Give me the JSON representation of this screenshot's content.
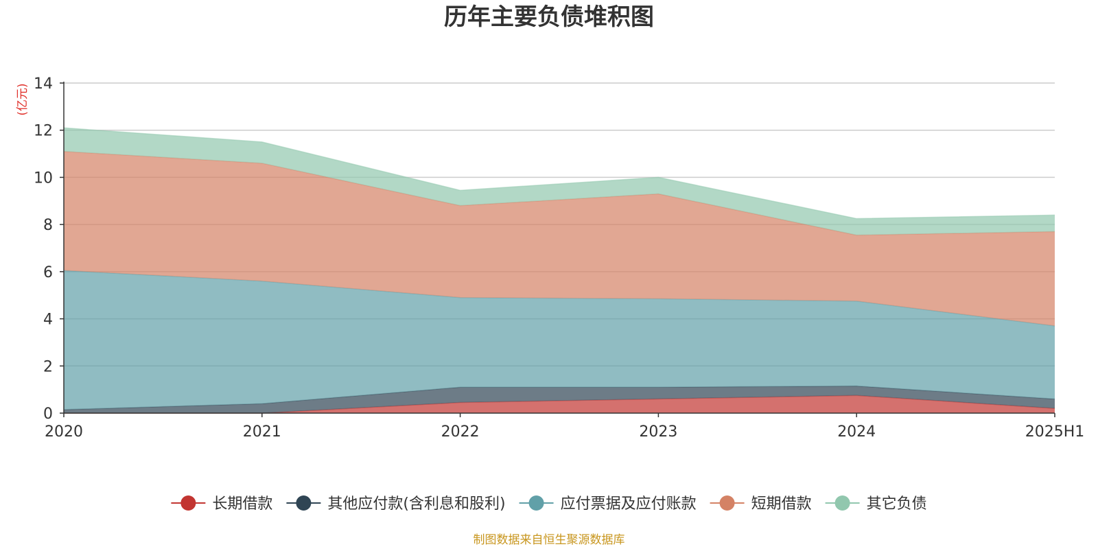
{
  "chart_data": {
    "type": "area",
    "stacked": true,
    "title": "历年主要负债堆积图",
    "ylabel": "(亿元)",
    "xlabel": "",
    "categories": [
      "2020",
      "2021",
      "2022",
      "2023",
      "2024",
      "2025H1"
    ],
    "ylim": [
      0,
      14
    ],
    "yticks": [
      0,
      2,
      4,
      6,
      8,
      10,
      12,
      14
    ],
    "grid": true,
    "legend_position": "bottom-center",
    "series": [
      {
        "name": "长期借款",
        "color": "#c23531",
        "values": [
          0.0,
          0.0,
          0.45,
          0.6,
          0.75,
          0.2
        ]
      },
      {
        "name": "其他应付款(含利息和股利)",
        "color": "#2f4554",
        "values": [
          0.15,
          0.4,
          0.65,
          0.5,
          0.4,
          0.4
        ]
      },
      {
        "name": "应付票据及应付账款",
        "color": "#61a0a8",
        "values": [
          5.9,
          5.2,
          3.8,
          3.75,
          3.6,
          3.1
        ]
      },
      {
        "name": "短期借款",
        "color": "#d48265",
        "values": [
          5.05,
          5.0,
          3.9,
          4.45,
          2.8,
          4.0
        ]
      },
      {
        "name": "其它负债",
        "color": "#91c7ae",
        "values": [
          1.0,
          0.9,
          0.65,
          0.7,
          0.7,
          0.7
        ]
      }
    ]
  },
  "source": "制图数据来自恒生聚源数据库",
  "colors": {
    "unit": "#e0302a",
    "source": "#c8961e",
    "axis": "#333333",
    "grid": "#cccccc"
  }
}
